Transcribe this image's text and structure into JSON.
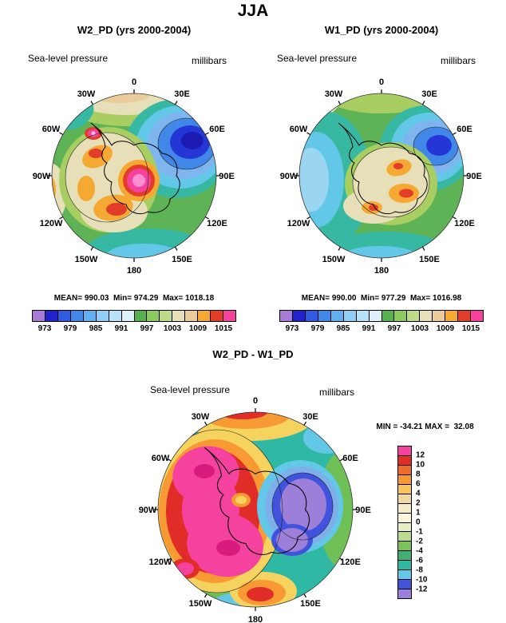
{
  "title": "JJA",
  "shared": {
    "field_label": "Sea-level pressure",
    "units_label": "millibars",
    "lon_labels": [
      "0",
      "30E",
      "60E",
      "90E",
      "120E",
      "150E",
      "180",
      "150W",
      "120W",
      "90W",
      "60W",
      "30W"
    ]
  },
  "panels": {
    "w2": {
      "title": "W2_PD (yrs 2000-2004)",
      "stats": "MEAN= 990.03  Min= 974.29  Max= 1018.18"
    },
    "w1": {
      "title": "W1_PD (yrs 2000-2004)",
      "stats": "MEAN= 990.00  Min= 977.29  Max= 1016.98"
    },
    "diff": {
      "title": "W2_PD - W1_PD",
      "stats": "MIN = -34.21 MAX =  32.08"
    }
  },
  "pressure_colorbar": {
    "tick_labels": [
      "973",
      "979",
      "985",
      "991",
      "997",
      "1003",
      "1009",
      "1015"
    ],
    "colors": [
      "#A87BD6",
      "#2222CC",
      "#2E5BE0",
      "#4187E8",
      "#63AEEE",
      "#8FCDF4",
      "#B6E3F8",
      "#DDF1FA",
      "#55B04E",
      "#8CC95E",
      "#BFDB8A",
      "#E6DFB8",
      "#EACB9A",
      "#F5A832",
      "#E23D28",
      "#F4429E"
    ]
  },
  "diff_colorbar": {
    "tick_labels": [
      "12",
      "10",
      "8",
      "6",
      "4",
      "2",
      "1",
      "0",
      "-1",
      "-2",
      "-4",
      "-6",
      "-8",
      "-10",
      "-12"
    ],
    "colors": [
      "#F4429E",
      "#E02D28",
      "#F06A2A",
      "#F79A33",
      "#F8C55C",
      "#EFD9A0",
      "#F6ECC8",
      "#FCF6DE",
      "#E4EFC4",
      "#BBDC8C",
      "#7CC25B",
      "#43AE73",
      "#2FB9A5",
      "#63C8E8",
      "#4153DC",
      "#9C7FD8"
    ]
  },
  "chart_data": [
    {
      "type": "heatmap",
      "subtype": "south-polar-stereographic contour map",
      "season": "JJA",
      "title": "W2_PD (yrs 2000-2004)",
      "variable": "Sea-level pressure",
      "units": "millibars",
      "stats": {
        "mean": 990.03,
        "min": 974.29,
        "max": 1018.18
      },
      "labeled_levels": [
        973,
        979,
        985,
        991,
        997,
        1003,
        1009,
        1015
      ],
      "longitude_labels": [
        "0",
        "30E",
        "60E",
        "90E",
        "120E",
        "150E",
        "180",
        "150W",
        "120W",
        "90W",
        "60W",
        "30W"
      ],
      "legend_position": "bottom"
    },
    {
      "type": "heatmap",
      "subtype": "south-polar-stereographic contour map",
      "season": "JJA",
      "title": "W1_PD (yrs 2000-2004)",
      "variable": "Sea-level pressure",
      "units": "millibars",
      "stats": {
        "mean": 990.0,
        "min": 977.29,
        "max": 1016.98
      },
      "labeled_levels": [
        973,
        979,
        985,
        991,
        997,
        1003,
        1009,
        1015
      ],
      "longitude_labels": [
        "0",
        "30E",
        "60E",
        "90E",
        "120E",
        "150E",
        "180",
        "150W",
        "120W",
        "90W",
        "60W",
        "30W"
      ],
      "legend_position": "bottom"
    },
    {
      "type": "heatmap",
      "subtype": "south-polar-stereographic contour map difference",
      "season": "JJA",
      "title": "W2_PD - W1_PD",
      "variable": "Sea-level pressure",
      "units": "millibars",
      "stats": {
        "min": -34.21,
        "max": 32.08
      },
      "labeled_levels": [
        12,
        10,
        8,
        6,
        4,
        2,
        1,
        0,
        -1,
        -2,
        -4,
        -6,
        -8,
        -10,
        -12
      ],
      "longitude_labels": [
        "0",
        "30E",
        "60E",
        "90E",
        "120E",
        "150E",
        "180",
        "150W",
        "120W",
        "90W",
        "60W",
        "30W"
      ],
      "legend_position": "right"
    }
  ]
}
